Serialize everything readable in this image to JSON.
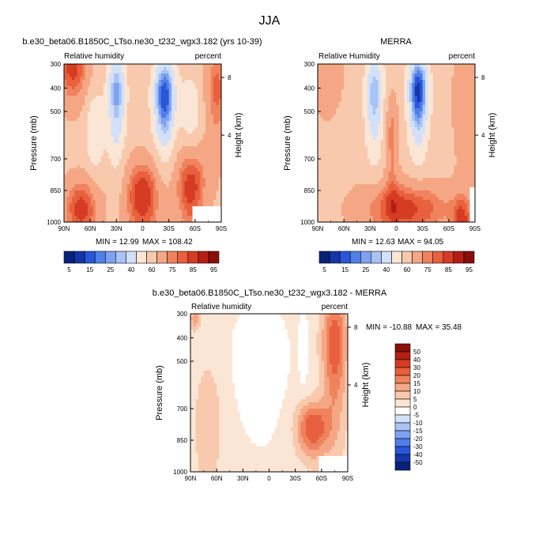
{
  "figure_title": "JJA",
  "colors": {
    "rh_levels": [
      "#08217a",
      "#1436a8",
      "#2a56d9",
      "#4f7fe8",
      "#7ea2f0",
      "#a9c3f5",
      "#d2e1f9",
      "#fbe6d6",
      "#f8c9ad",
      "#f5a785",
      "#f0825d",
      "#e8603d",
      "#d53c23",
      "#b41f14",
      "#8a0e0b"
    ],
    "diff_levels": [
      "#08217a",
      "#1436a8",
      "#2a56d9",
      "#4f7fe8",
      "#7ea2f0",
      "#a9c3f5",
      "#d2e1f9",
      "#ffffff",
      "#fbe6d6",
      "#f8c9ad",
      "#f5a785",
      "#f0825d",
      "#e8603d",
      "#d53c23",
      "#b41f14",
      "#8a0e0b"
    ]
  },
  "chart_data": [
    {
      "type": "heatmap",
      "title": "b.e30_beta06.B1850C_LTso.ne30_t232_wgx3.182 (yrs 10-39)",
      "left_label": "Relative humidity",
      "right_label": "percent",
      "ylabel": "Pressure (mb)",
      "ylabel_right": "Height (km)",
      "x_ticks": [
        "90N",
        "60N",
        "30N",
        "0",
        "30S",
        "60S",
        "90S"
      ],
      "y_ticks": [
        "300",
        "400",
        "500",
        "700",
        "850",
        "1000"
      ],
      "y_ticks_right": [
        "8",
        "4"
      ],
      "min_label": "MIN = 12.99",
      "max_label": "MAX = 108.42",
      "min": 12.99,
      "max": 108.42,
      "field": "model"
    },
    {
      "type": "heatmap",
      "title": "MERRA",
      "left_label": "Relative Humidity",
      "right_label": "percent",
      "ylabel": "Pressure (mb)",
      "ylabel_right": "Height (km)",
      "x_ticks": [
        "90N",
        "60N",
        "30N",
        "0",
        "30S",
        "60S",
        "90S"
      ],
      "y_ticks": [
        "300",
        "400",
        "500",
        "700",
        "850",
        "1000"
      ],
      "y_ticks_right": [
        "8",
        "4"
      ],
      "min_label": "MIN = 12.63",
      "max_label": "MAX = 94.05",
      "min": 12.63,
      "max": 94.05,
      "field": "merra"
    },
    {
      "type": "heatmap",
      "title": "b.e30_beta06.B1850C_LTso.ne30_t232_wgx3.182 - MERRA",
      "left_label": "Relative humidity",
      "right_label": "percent",
      "ylabel": "Pressure (mb)",
      "ylabel_right": "Height (km)",
      "x_ticks": [
        "90N",
        "60N",
        "30N",
        "0",
        "30S",
        "60S",
        "90S"
      ],
      "y_ticks": [
        "300",
        "400",
        "500",
        "700",
        "850",
        "1000"
      ],
      "y_ticks_right": [
        "8",
        "4"
      ],
      "min_label": "MIN = -10.88",
      "max_label": "MAX =  35.48",
      "min": -10.88,
      "max": 35.48,
      "field": "diff"
    }
  ],
  "colorbar_rh": {
    "labels": [
      "5",
      "15",
      "25",
      "40",
      "60",
      "75",
      "85",
      "95"
    ]
  },
  "colorbar_diff": {
    "labels": [
      "50",
      "40",
      "30",
      "20",
      "15",
      "10",
      "5",
      "0",
      "-5",
      "-10",
      "-15",
      "-20",
      "-30",
      "-40",
      "-50"
    ]
  }
}
